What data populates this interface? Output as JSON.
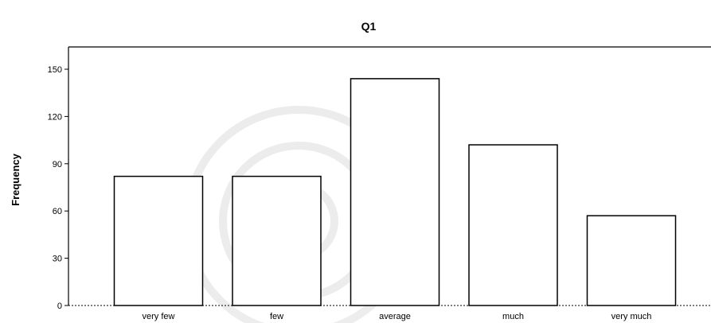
{
  "chart_data": {
    "type": "bar",
    "title": "Q1",
    "xlabel": "",
    "ylabel": "Frequency",
    "categories": [
      "very few",
      "few",
      "average",
      "much",
      "very much"
    ],
    "values": [
      82,
      82,
      144,
      102,
      57
    ],
    "ylim": [
      0,
      150
    ],
    "yticks": [
      "0",
      "30",
      "60",
      "90",
      "120",
      "150"
    ],
    "grid": false,
    "bar_fill": "#ffffff",
    "bar_stroke": "#000000"
  }
}
